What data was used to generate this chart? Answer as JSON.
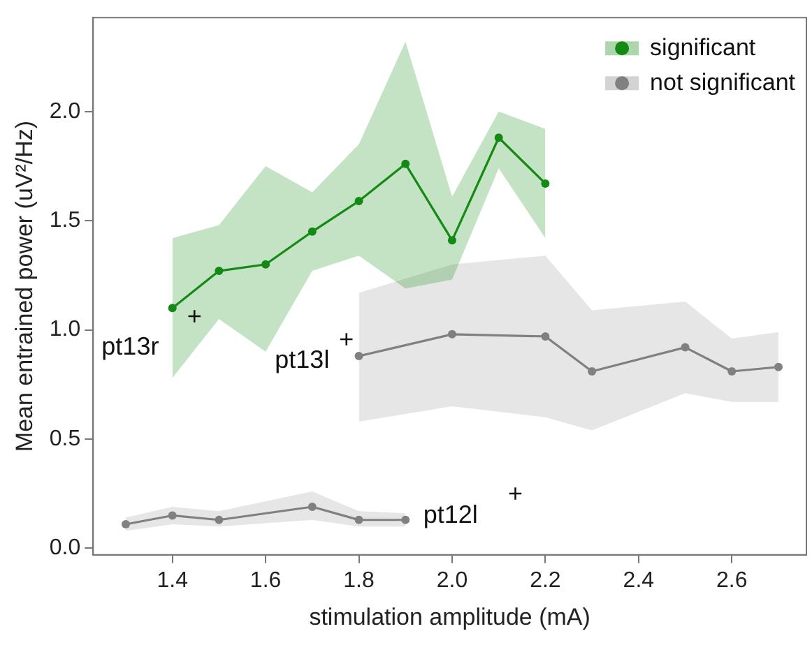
{
  "chart_data": {
    "type": "line",
    "xlabel": "stimulation amplitude (mA)",
    "ylabel": "Mean entrained power (uV²/Hz)",
    "xlim": [
      1.23,
      2.76
    ],
    "ylim": [
      -0.03,
      2.43
    ],
    "xticks": [
      1.4,
      1.6,
      1.8,
      {
        "value": 2,
        "label": "2.0"
      },
      2.2,
      2.4,
      2.6
    ],
    "yticks": [
      {
        "value": 0,
        "label": "0.0"
      },
      0.5,
      {
        "value": 1,
        "label": "1.0"
      },
      1.5,
      {
        "value": 2,
        "label": "2.0"
      }
    ],
    "grid": false,
    "legend": "top right",
    "marker": "circle",
    "line_style": "solid",
    "series": [
      {
        "name": "significant",
        "color": "#138a13",
        "x": [
          1.4,
          1.5,
          1.6,
          1.7,
          1.8,
          1.9,
          2.0,
          2.1,
          2.2
        ],
        "values": [
          1.1,
          1.27,
          1.3,
          1.45,
          1.59,
          1.76,
          1.41,
          1.88,
          1.67
        ],
        "lower": [
          0.78,
          1.05,
          0.9,
          1.27,
          1.34,
          1.19,
          1.23,
          1.74,
          1.42
        ],
        "upper": [
          1.42,
          1.48,
          1.75,
          1.63,
          1.85,
          2.32,
          1.61,
          2.0,
          1.92
        ]
      },
      {
        "name": "not significant",
        "color": "#808080",
        "x": [
          1.8,
          2.0,
          2.2,
          2.3,
          2.5,
          2.6,
          2.7
        ],
        "values": [
          0.88,
          0.98,
          0.97,
          0.81,
          0.92,
          0.81,
          0.83
        ],
        "lower": [
          0.58,
          0.65,
          0.6,
          0.54,
          0.71,
          0.67,
          0.67
        ],
        "upper": [
          1.17,
          1.3,
          1.34,
          1.09,
          1.13,
          0.96,
          0.99
        ]
      },
      {
        "color": "#808080",
        "x": [
          1.3,
          1.4,
          1.5,
          1.7,
          1.8,
          1.9
        ],
        "values": [
          0.11,
          0.15,
          0.13,
          0.19,
          0.13,
          0.13
        ],
        "lower": [
          0.08,
          0.11,
          0.1,
          0.13,
          0.1,
          0.1
        ],
        "upper": [
          0.14,
          0.19,
          0.17,
          0.26,
          0.17,
          0.16
        ]
      }
    ],
    "annotations": [
      "pt13r",
      "+",
      "pt13l",
      "+",
      "pt12l",
      "+"
    ]
  }
}
